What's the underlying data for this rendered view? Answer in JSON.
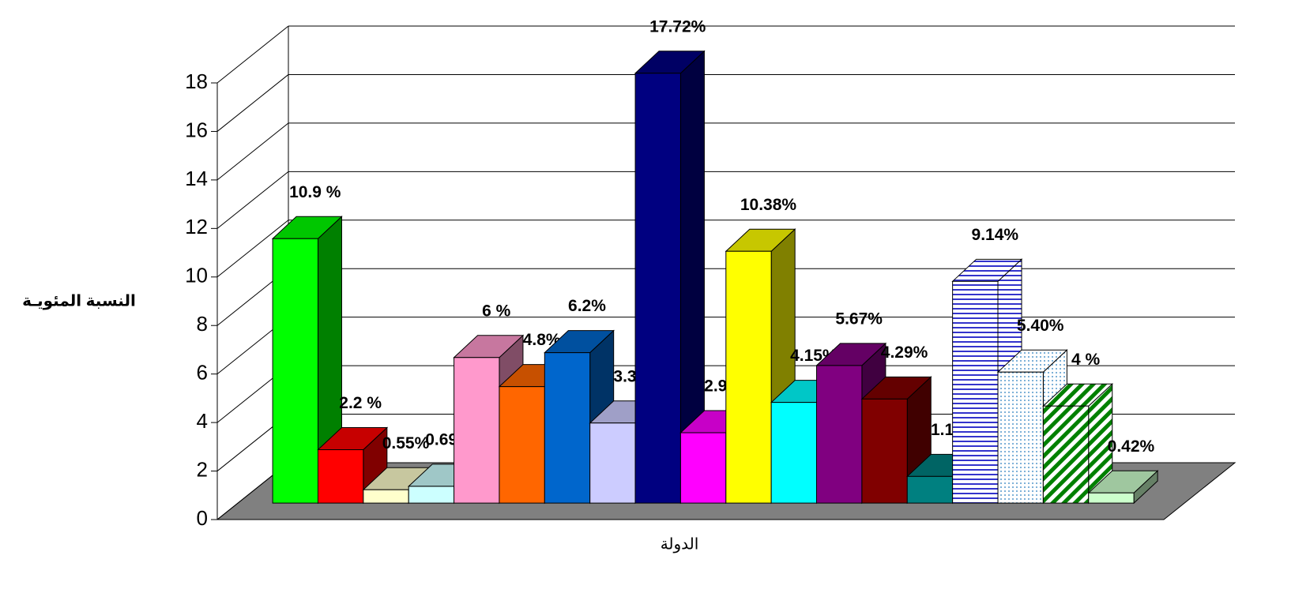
{
  "chart_data": {
    "type": "bar3d",
    "ylabel": "النسبة المئويـة",
    "xlabel": "الدولة",
    "values": [
      10.9,
      2.2,
      0.55,
      0.69,
      6,
      4.8,
      6.2,
      3.3,
      17.72,
      2.9,
      10.38,
      4.15,
      5.67,
      4.29,
      1.1,
      9.14,
      5.4,
      4,
      0.42
    ],
    "value_labels": [
      "10.9 %",
      "2.2 %",
      "0.55%",
      "0.69 %",
      "6 %",
      "4.8%",
      "6.2%",
      "3.3%",
      "17.72%",
      "2.9%",
      "10.38%",
      "4.15%",
      "5.67%",
      "4.29%",
      "1.1%",
      "9.14%",
      "5.40%",
      "4 %",
      "0.42%"
    ],
    "colors": [
      "#00ff00",
      "#ff0000",
      "#ffffcc",
      "#ccffff",
      "#ff99cc",
      "#ff6600",
      "#0066cc",
      "#ccccff",
      "#000080",
      "#ff00ff",
      "#ffff00",
      "#00ffff",
      "#800080",
      "#800000",
      "#008080",
      "#3333cc",
      "#99ccdd",
      "#008000",
      "#ccffcc"
    ],
    "patterns": [
      null,
      null,
      null,
      null,
      null,
      null,
      null,
      null,
      null,
      null,
      null,
      null,
      null,
      null,
      null,
      "hlines",
      "dots",
      "diagonal",
      null
    ],
    "ylim": [
      0,
      18
    ],
    "yticks": [
      0,
      2,
      4,
      6,
      8,
      10,
      12,
      14,
      16,
      18
    ],
    "grid": true
  }
}
